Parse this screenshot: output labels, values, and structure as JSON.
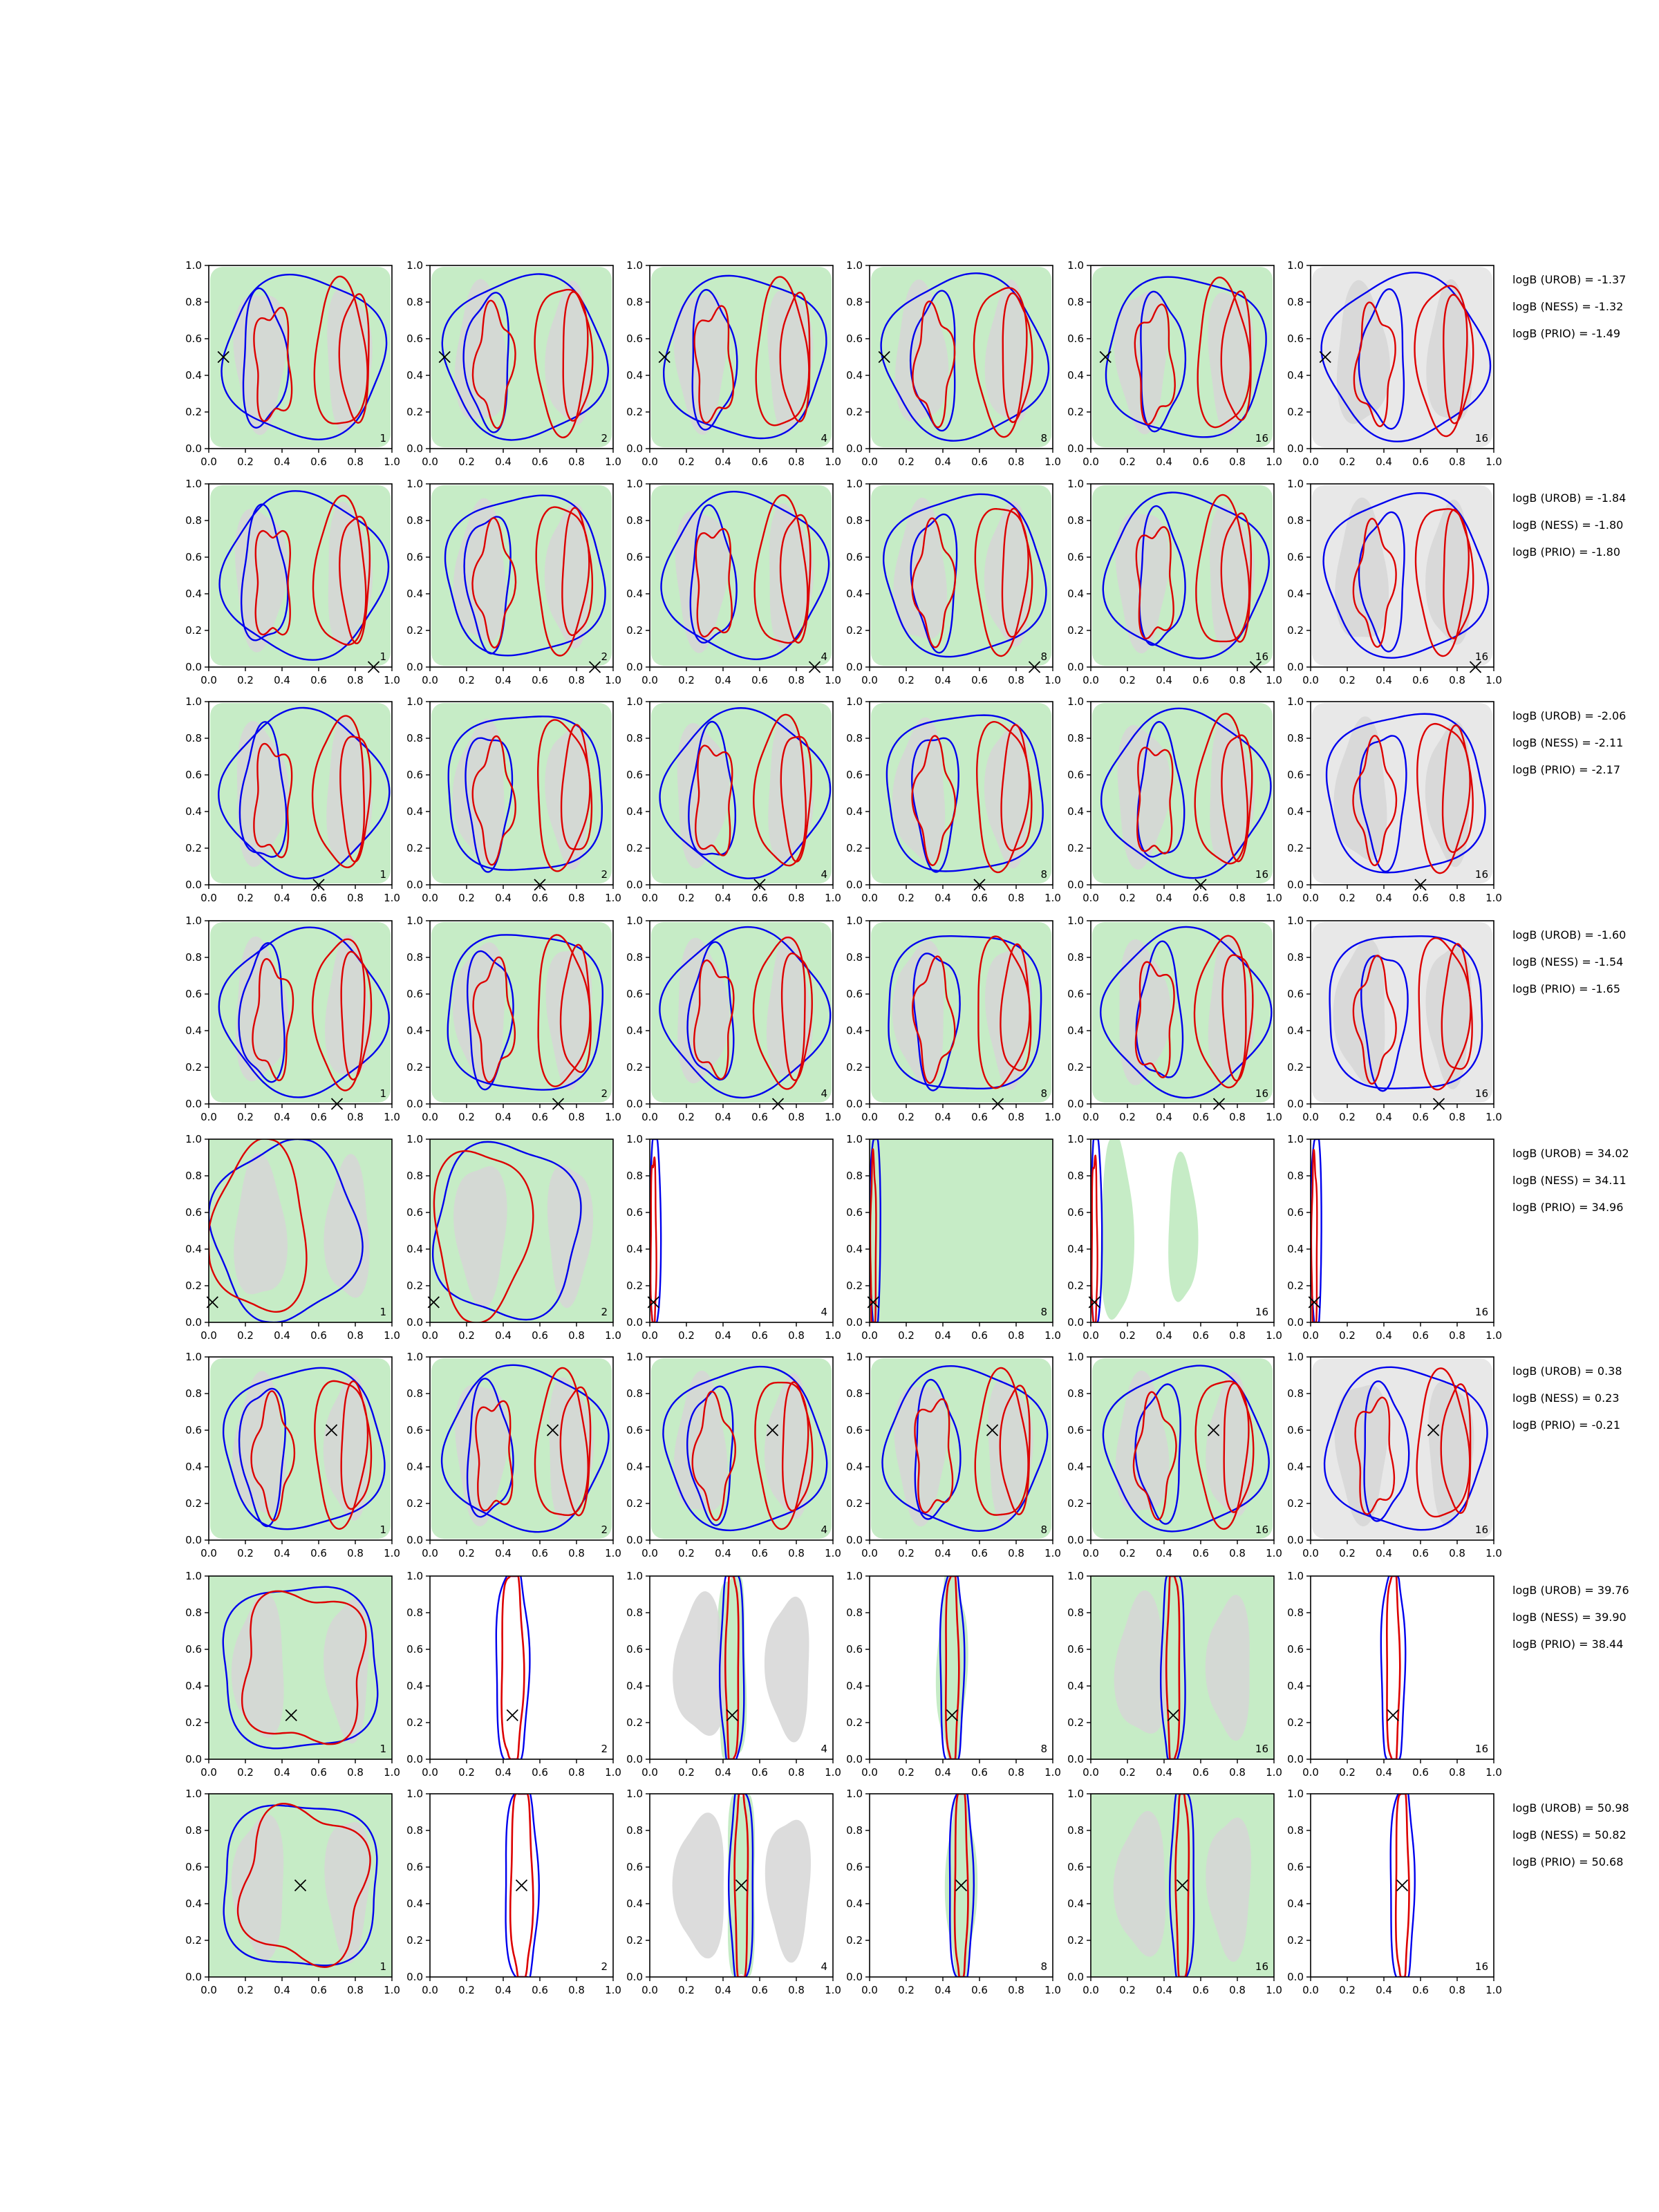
{
  "colors": {
    "green_fill": "#c6ecc6",
    "gray_fill": "#d6d6d6",
    "light_gray_fill": "#e8e8e8",
    "blue_contour": "#0000ee",
    "red_contour": "#dd0000",
    "axis": "#000000"
  },
  "chart_data": {
    "type": "contour-grid",
    "rows": 8,
    "cols": 6,
    "xlim": [
      0.0,
      1.0
    ],
    "ylim": [
      0.0,
      1.0
    ],
    "x_ticks": [
      "0.0",
      "0.2",
      "0.4",
      "0.6",
      "0.8",
      "1.0"
    ],
    "y_ticks": [
      "0.0",
      "0.2",
      "0.4",
      "0.6",
      "0.8",
      "1.0"
    ],
    "panel_corner_labels": [
      "1",
      "2",
      "4",
      "8",
      "16",
      "16"
    ],
    "legend_series": [
      "UROB",
      "NESS",
      "PRIO"
    ],
    "row_annotations": [
      [
        "logB (UROB) = -1.37",
        "logB (NESS) = -1.32",
        "logB (PRIO) = -1.49"
      ],
      [
        "logB (UROB) = -1.84",
        "logB (NESS) = -1.80",
        "logB (PRIO) = -1.80"
      ],
      [
        "logB (UROB) = -2.06",
        "logB (NESS) = -2.11",
        "logB (PRIO) = -2.17"
      ],
      [
        "logB (UROB) = -1.60",
        "logB (NESS) = -1.54",
        "logB (PRIO) = -1.65"
      ],
      [
        "logB (UROB) = 34.02",
        "logB (NESS) = 34.11",
        "logB (PRIO) = 34.96"
      ],
      [
        "logB (UROB) = 0.38",
        "logB (NESS) = 0.23",
        "logB (PRIO) = -0.21"
      ],
      [
        "logB (UROB) = 39.76",
        "logB (NESS) = 39.90",
        "logB (PRIO) = 38.44"
      ],
      [
        "logB (UROB) = 50.98",
        "logB (NESS) = 50.82",
        "logB (PRIO) = 50.68"
      ]
    ],
    "true_points": [
      {
        "x": 0.08,
        "y": 0.5
      },
      {
        "x": 0.9,
        "y": 0.0
      },
      {
        "x": 0.6,
        "y": 0.0
      },
      {
        "x": 0.7,
        "y": 0.0
      },
      {
        "x": 0.02,
        "y": 0.11
      },
      {
        "x": 0.67,
        "y": 0.6
      },
      {
        "x": 0.45,
        "y": 0.24
      },
      {
        "x": 0.5,
        "y": 0.5
      }
    ],
    "row_kind": [
      "broad",
      "broad",
      "broad",
      "broad",
      "edge",
      "broad",
      "narrow",
      "narrow"
    ]
  }
}
